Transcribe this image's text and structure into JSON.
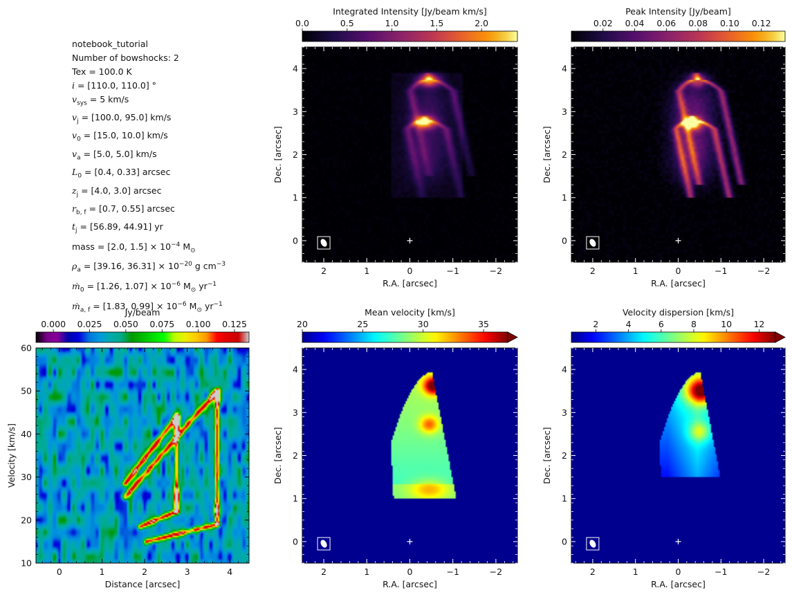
{
  "params": {
    "name": "notebook_tutorial",
    "nbowshocks": "Number of bowshocks: 2",
    "tex": "Tex = 100.0 K",
    "i_val": "= [110.0, 110.0] °",
    "vsys_val": "= 5 km/s",
    "vj_val": "= [100.0, 95.0] km/s",
    "v0_val": "= [15.0, 10.0] km/s",
    "va_val": "= [5.0, 5.0] km/s",
    "L0_val": "= [0.4, 0.33] arcsec",
    "zj_val": "= [4.0, 3.0] arcsec",
    "rbf_val": "= [0.7, 0.55] arcsec",
    "tj_val": "= [56.89, 44.91] yr",
    "mass_val": "= [2.0, 1.5] × 10",
    "mass_exp": "−4",
    "mass_unit": " M",
    "rho_val": "= [39.16, 36.31] × 10",
    "rho_exp": "−20",
    "rho_unit": " g cm",
    "rho_unit_exp": "−3",
    "m0_val": "= [1.26, 1.07] × 10",
    "m0_exp": "−6",
    "maf_val": "= [1.83, 0.99] × 10",
    "maf_exp": "−6",
    "rate_unit": " M",
    "rate_yr": " yr",
    "rate_yr_exp": "−1"
  },
  "chart_data": [
    {
      "id": "mom0",
      "type": "heatmap",
      "title": "Integrated Intensity [Jy/beam km/s]",
      "colormap": "inferno",
      "colorbar_ticks": [
        "0.0",
        "0.5",
        "1.0",
        "1.5",
        "2.0"
      ],
      "colorbar_range": [
        0,
        2.4
      ],
      "xlabel": "R.A. [arcsec]",
      "ylabel": "Dec. [arcsec]",
      "xlim": [
        2.5,
        -2.5
      ],
      "ylim": [
        -0.5,
        4.5
      ],
      "xticks": [
        "2",
        "1",
        "0",
        "−1",
        "−2"
      ],
      "yticks": [
        "0",
        "1",
        "2",
        "3",
        "4"
      ],
      "source_marker": [
        0,
        0
      ],
      "features": [
        {
          "kind": "bowshock",
          "apex": [
            -0.45,
            3.75
          ],
          "peak": 0.95
        },
        {
          "kind": "bowshock",
          "apex": [
            -0.35,
            2.75
          ],
          "peak": 1.0
        }
      ]
    },
    {
      "id": "mom8",
      "type": "heatmap",
      "title": "Peak Intensity [Jy/beam]",
      "colormap": "inferno",
      "colorbar_ticks": [
        "0.02",
        "0.04",
        "0.06",
        "0.08",
        "0.10",
        "0.12"
      ],
      "colorbar_range": [
        0,
        0.135
      ],
      "xlabel": "R.A. [arcsec]",
      "ylabel": "Dec. [arcsec]",
      "xlim": [
        2.5,
        -2.5
      ],
      "ylim": [
        -0.5,
        4.5
      ],
      "xticks": [
        "2",
        "1",
        "0",
        "−1",
        "−2"
      ],
      "yticks": [
        "0",
        "1",
        "2",
        "3",
        "4"
      ],
      "source_marker": [
        0,
        0
      ]
    },
    {
      "id": "pv",
      "type": "heatmap",
      "title": "Jy/beam",
      "colormap": "nipy_spectral",
      "colorbar_ticks": [
        "0.000",
        "0.025",
        "0.050",
        "0.075",
        "0.100",
        "0.125"
      ],
      "colorbar_range": [
        -0.012,
        0.135
      ],
      "xlabel": "Distance [arcsec]",
      "ylabel": "Velocity [km/s]",
      "xlim": [
        -0.55,
        4.45
      ],
      "ylim": [
        10,
        60
      ],
      "xticks": [
        "0",
        "1",
        "2",
        "3",
        "4"
      ],
      "yticks": [
        "10",
        "20",
        "30",
        "40",
        "50",
        "60"
      ]
    },
    {
      "id": "mom1",
      "type": "heatmap",
      "title": "Mean velocity [km/s]",
      "colormap": "jet",
      "colorbar_ticks": [
        "20",
        "25",
        "30",
        "35"
      ],
      "colorbar_range": [
        20,
        37
      ],
      "xlabel": "R.A. [arcsec]",
      "ylabel": "Dec. [arcsec]",
      "xlim": [
        2.5,
        -2.5
      ],
      "ylim": [
        -0.5,
        4.5
      ],
      "xticks": [
        "2",
        "1",
        "0",
        "−1",
        "−2"
      ],
      "yticks": [
        "0",
        "1",
        "2",
        "3",
        "4"
      ],
      "source_marker": [
        0,
        0
      ]
    },
    {
      "id": "mom2",
      "type": "heatmap",
      "title": "Velocity dispersion [km/s]",
      "colormap": "jet",
      "colorbar_ticks": [
        "2",
        "4",
        "6",
        "8",
        "10",
        "12"
      ],
      "colorbar_range": [
        0.5,
        13
      ],
      "xlabel": "R.A. [arcsec]",
      "ylabel": "Dec. [arcsec]",
      "xlim": [
        2.5,
        -2.5
      ],
      "ylim": [
        -0.5,
        4.5
      ],
      "xticks": [
        "2",
        "1",
        "0",
        "−1",
        "−2"
      ],
      "yticks": [
        "0",
        "1",
        "2",
        "3",
        "4"
      ],
      "source_marker": [
        0,
        0
      ]
    }
  ]
}
